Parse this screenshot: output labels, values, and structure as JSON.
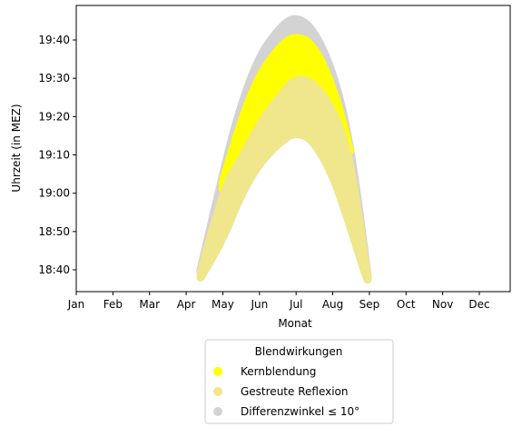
{
  "chart_data": {
    "type": "scatter",
    "xlabel": "Monat",
    "ylabel": "Uhrzeit (in MEZ)",
    "x_ticks": [
      "Jan",
      "Feb",
      "Mar",
      "Apr",
      "May",
      "Jun",
      "Jul",
      "Aug",
      "Sep",
      "Oct",
      "Nov",
      "Dec"
    ],
    "y_ticks": [
      "18:40",
      "18:50",
      "19:00",
      "19:10",
      "19:20",
      "19:30",
      "19:40"
    ],
    "ylim": [
      "18:35",
      "19:49"
    ],
    "xlim": [
      "Jan",
      "Dec"
    ],
    "grid": false,
    "legend": {
      "title": "Blendwirkungen",
      "placement": "below-center",
      "entries": [
        {
          "name": "Kernblendung",
          "color": "#ffff00"
        },
        {
          "name": "Gestreute Reflexion",
          "color": "#f0e68c"
        },
        {
          "name": "Differenzwinkel ≤ 10°",
          "color": "#d3d3d3"
        }
      ]
    },
    "series": [
      {
        "name": "Differenzwinkel ≤ 10°",
        "color": "#d3d3d3",
        "upper": [
          {
            "x": "Apr 13",
            "y": "18:40"
          },
          {
            "x": "May 01",
            "y": "19:05"
          },
          {
            "x": "May 15",
            "y": "19:22"
          },
          {
            "x": "Jun 01",
            "y": "19:36"
          },
          {
            "x": "Jun 20",
            "y": "19:44"
          },
          {
            "x": "Jul 01",
            "y": "19:46"
          },
          {
            "x": "Jul 15",
            "y": "19:43"
          },
          {
            "x": "Aug 01",
            "y": "19:32"
          },
          {
            "x": "Aug 15",
            "y": "19:14"
          },
          {
            "x": "Aug 30",
            "y": "18:39"
          }
        ]
      },
      {
        "name": "Kernblendung",
        "color": "#ffff00",
        "upper": [
          {
            "x": "May 01",
            "y": "19:03"
          },
          {
            "x": "May 15",
            "y": "19:18"
          },
          {
            "x": "Jun 01",
            "y": "19:31"
          },
          {
            "x": "Jun 20",
            "y": "19:39"
          },
          {
            "x": "Jul 01",
            "y": "19:41"
          },
          {
            "x": "Jul 15",
            "y": "19:39"
          },
          {
            "x": "Aug 01",
            "y": "19:28"
          },
          {
            "x": "Aug 15",
            "y": "19:12"
          }
        ],
        "lower": [
          {
            "x": "May 01",
            "y": "19:01"
          },
          {
            "x": "May 15",
            "y": "19:08"
          },
          {
            "x": "Jun 01",
            "y": "19:18"
          },
          {
            "x": "Jun 20",
            "y": "19:26"
          },
          {
            "x": "Jul 01",
            "y": "19:30"
          },
          {
            "x": "Jul 15",
            "y": "19:29"
          },
          {
            "x": "Aug 01",
            "y": "19:22"
          },
          {
            "x": "Aug 15",
            "y": "19:10"
          }
        ]
      },
      {
        "name": "Gestreute Reflexion",
        "color": "#f0e68c",
        "upper": [
          {
            "x": "Apr 13",
            "y": "18:39"
          },
          {
            "x": "May 01",
            "y": "19:01"
          },
          {
            "x": "May 15",
            "y": "19:08"
          },
          {
            "x": "Jun 01",
            "y": "19:18"
          },
          {
            "x": "Jun 20",
            "y": "19:26"
          },
          {
            "x": "Jul 01",
            "y": "19:30"
          },
          {
            "x": "Jul 15",
            "y": "19:29"
          },
          {
            "x": "Aug 01",
            "y": "19:22"
          },
          {
            "x": "Aug 15",
            "y": "19:10"
          },
          {
            "x": "Aug 30",
            "y": "18:38"
          }
        ],
        "lower": [
          {
            "x": "Apr 13",
            "y": "18:38"
          },
          {
            "x": "May 01",
            "y": "18:48"
          },
          {
            "x": "May 15",
            "y": "18:59"
          },
          {
            "x": "Jun 01",
            "y": "19:08"
          },
          {
            "x": "Jun 20",
            "y": "19:14"
          },
          {
            "x": "Jul 01",
            "y": "19:16"
          },
          {
            "x": "Jul 15",
            "y": "19:14"
          },
          {
            "x": "Aug 01",
            "y": "19:05"
          },
          {
            "x": "Aug 15",
            "y": "18:52"
          },
          {
            "x": "Aug 30",
            "y": "18:37"
          }
        ]
      }
    ]
  }
}
